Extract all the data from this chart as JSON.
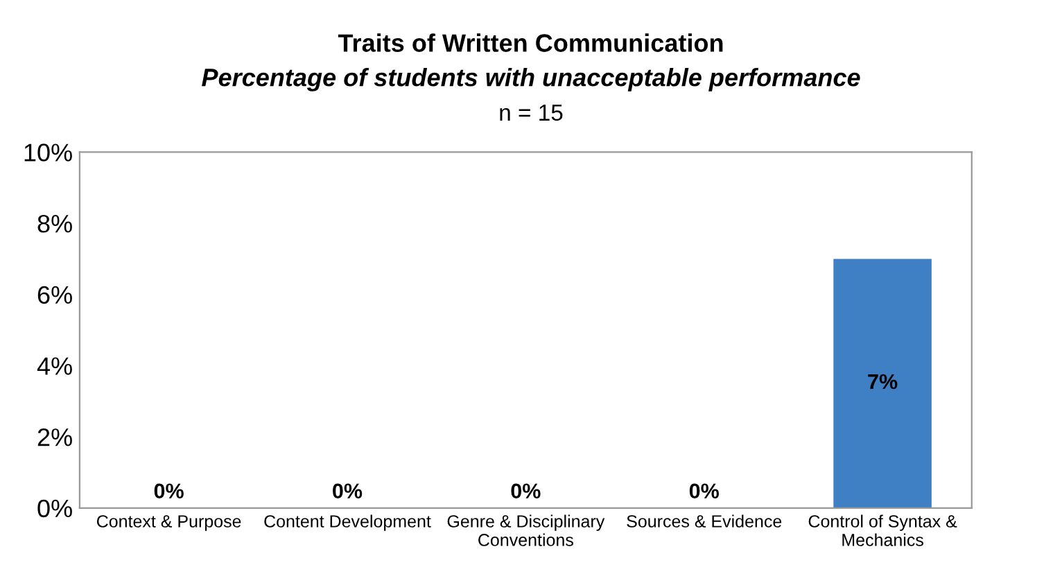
{
  "chart_data": {
    "type": "bar",
    "title": "Traits of Written Communication",
    "subtitle": "Percentage of students with unacceptable performance",
    "annotations": [
      "n = 15"
    ],
    "categories": [
      "Context & Purpose",
      "Content Development",
      "Genre & Disciplinary Conventions",
      "Sources & Evidence",
      "Control of Syntax & Mechanics"
    ],
    "values": [
      0,
      0,
      0,
      0,
      7
    ],
    "color": "#3f7fc4",
    "value_labels": [
      "0%",
      "0%",
      "0%",
      "0%",
      "7%"
    ],
    "ylim": [
      0,
      10
    ],
    "yticks": [
      {
        "value": 0,
        "label": "0%"
      },
      {
        "value": 2,
        "label": "2%"
      },
      {
        "value": 4,
        "label": "4%"
      },
      {
        "value": 6,
        "label": "6%"
      },
      {
        "value": 8,
        "label": "8%"
      },
      {
        "value": 10,
        "label": "10%"
      }
    ],
    "grid": false,
    "legend": false
  }
}
